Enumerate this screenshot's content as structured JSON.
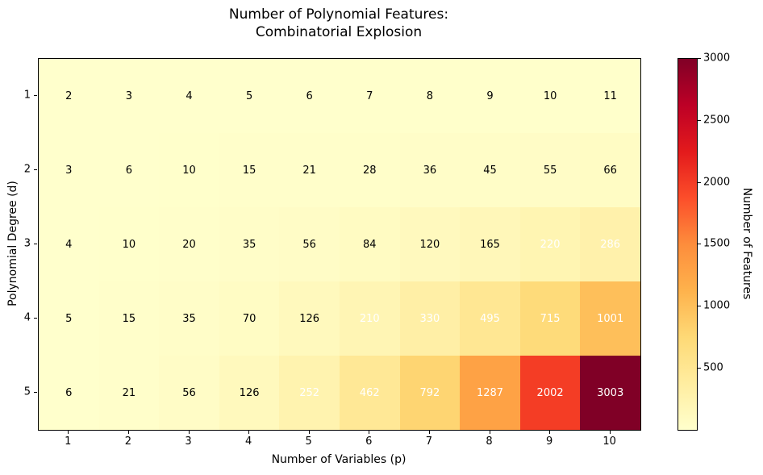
{
  "figure": {
    "title": "Number of Polynomial Features:\nCombinatorial Explosion"
  },
  "chart_data": {
    "type": "heatmap",
    "title": "Number of Polynomial Features: Combinatorial Explosion",
    "xlabel": "Number of Variables (p)",
    "ylabel": "Polynomial Degree (d)",
    "x_tick_labels": [
      "1",
      "2",
      "3",
      "4",
      "5",
      "6",
      "7",
      "8",
      "9",
      "10"
    ],
    "y_tick_labels": [
      "1",
      "2",
      "3",
      "4",
      "5"
    ],
    "values": [
      [
        2,
        3,
        4,
        5,
        6,
        7,
        8,
        9,
        10,
        11
      ],
      [
        3,
        6,
        10,
        15,
        21,
        28,
        36,
        45,
        55,
        66
      ],
      [
        4,
        10,
        20,
        35,
        56,
        84,
        120,
        165,
        220,
        286
      ],
      [
        5,
        15,
        35,
        70,
        126,
        210,
        330,
        495,
        715,
        1001
      ],
      [
        6,
        21,
        56,
        126,
        252,
        462,
        792,
        1287,
        2002,
        3003
      ]
    ],
    "vmin": 2,
    "vmax": 3003,
    "grid": false,
    "colormap": {
      "name": "YlOrRd",
      "stops": [
        "#ffffcc",
        "#ffeda0",
        "#fed976",
        "#feb24c",
        "#fd8d3c",
        "#fc4e2a",
        "#e31a1c",
        "#bd0026",
        "#800026"
      ]
    },
    "annotation_style": {
      "dark_text_color": "#000000",
      "light_text_color": "#ffffff",
      "light_text_above_value": 200
    },
    "colorbar": {
      "label": "Number of Features",
      "tick_values": [
        500,
        1000,
        1500,
        2000,
        2500,
        3000
      ],
      "position": "right"
    }
  }
}
